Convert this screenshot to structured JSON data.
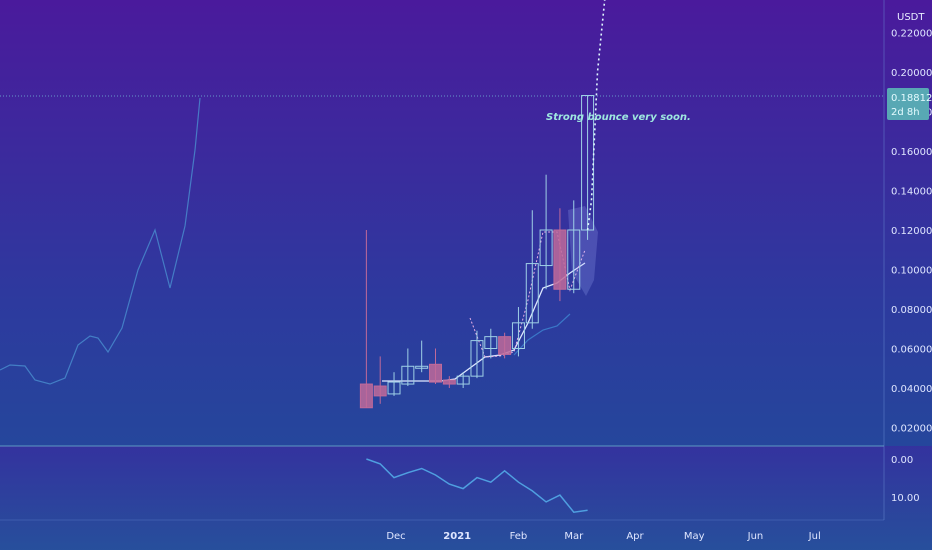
{
  "colors": {
    "bg_top": "#4a1a9c",
    "bg_mid": "#2d3a9e",
    "bg_bottom": "#1f4f9a",
    "candle_up": "#9fd0e6",
    "candle_down": "#c06a9a",
    "annotation": "#9ee8e0",
    "price_badge": "#58a8b4"
  },
  "chart_data": [
    {
      "type": "candlestick",
      "currency_label": "USDT",
      "y_ticks": [
        "0.22000",
        "0.20000",
        "0.18000",
        "0.16000",
        "0.14000",
        "0.12000",
        "0.10000",
        "0.08000",
        "0.06000",
        "0.04000",
        "0.02000"
      ],
      "ylim": [
        0.01,
        0.235
      ],
      "x_ticks": [
        "Dec",
        "2021",
        "Feb",
        "Mar",
        "Apr",
        "May",
        "Jun",
        "Jul"
      ],
      "last_price": "0.18812",
      "countdown": "2d 8h",
      "annotation": "Strong bounce very soon.",
      "candles": [
        {
          "date": "2020-11-16",
          "open": 0.042,
          "high": 0.12,
          "low": 0.03,
          "close": 0.03
        },
        {
          "date": "2020-11-23",
          "open": 0.041,
          "high": 0.056,
          "low": 0.032,
          "close": 0.036
        },
        {
          "date": "2020-11-30",
          "open": 0.037,
          "high": 0.048,
          "low": 0.036,
          "close": 0.043
        },
        {
          "date": "2020-12-07",
          "open": 0.042,
          "high": 0.06,
          "low": 0.041,
          "close": 0.051
        },
        {
          "date": "2020-12-14",
          "open": 0.05,
          "high": 0.064,
          "low": 0.048,
          "close": 0.051
        },
        {
          "date": "2020-12-21",
          "open": 0.052,
          "high": 0.06,
          "low": 0.042,
          "close": 0.043
        },
        {
          "date": "2020-12-28",
          "open": 0.044,
          "high": 0.046,
          "low": 0.04,
          "close": 0.042
        },
        {
          "date": "2021-01-04",
          "open": 0.042,
          "high": 0.048,
          "low": 0.04,
          "close": 0.046
        },
        {
          "date": "2021-01-11",
          "open": 0.046,
          "high": 0.069,
          "low": 0.045,
          "close": 0.064
        },
        {
          "date": "2021-01-18",
          "open": 0.06,
          "high": 0.07,
          "low": 0.055,
          "close": 0.066
        },
        {
          "date": "2021-01-25",
          "open": 0.066,
          "high": 0.068,
          "low": 0.055,
          "close": 0.057
        },
        {
          "date": "2021-02-01",
          "open": 0.06,
          "high": 0.081,
          "low": 0.056,
          "close": 0.073
        },
        {
          "date": "2021-02-08",
          "open": 0.073,
          "high": 0.13,
          "low": 0.07,
          "close": 0.103
        },
        {
          "date": "2021-02-15",
          "open": 0.102,
          "high": 0.148,
          "low": 0.09,
          "close": 0.12
        },
        {
          "date": "2021-02-22",
          "open": 0.12,
          "high": 0.131,
          "low": 0.084,
          "close": 0.09
        },
        {
          "date": "2021-03-01",
          "open": 0.09,
          "high": 0.135,
          "low": 0.088,
          "close": 0.12
        },
        {
          "date": "2021-03-08",
          "open": 0.12,
          "high": 0.188,
          "low": 0.115,
          "close": 0.1881
        }
      ],
      "projection_points": [
        {
          "date": "2021-03-08",
          "y": 0.12
        },
        {
          "date": "2021-03-10",
          "y": 0.135
        },
        {
          "date": "2021-03-13",
          "y": 0.2
        },
        {
          "date": "2021-03-17",
          "y": 0.24
        }
      ]
    },
    {
      "type": "line",
      "y_ticks": [
        "0.00",
        "10.00"
      ],
      "ylim": [
        -1.0,
        14.5
      ],
      "values": [
        {
          "date": "2020-11-16",
          "y": 0.0
        },
        {
          "date": "2020-11-23",
          "y": 1.3
        },
        {
          "date": "2020-11-30",
          "y": 4.9
        },
        {
          "date": "2020-12-07",
          "y": 3.6
        },
        {
          "date": "2020-12-14",
          "y": 2.5
        },
        {
          "date": "2020-12-21",
          "y": 4.2
        },
        {
          "date": "2020-12-28",
          "y": 6.6
        },
        {
          "date": "2021-01-04",
          "y": 7.8
        },
        {
          "date": "2021-01-11",
          "y": 4.9
        },
        {
          "date": "2021-01-18",
          "y": 6.1
        },
        {
          "date": "2021-01-25",
          "y": 3.1
        },
        {
          "date": "2021-02-01",
          "y": 6.1
        },
        {
          "date": "2021-02-08",
          "y": 8.4
        },
        {
          "date": "2021-02-15",
          "y": 11.3
        },
        {
          "date": "2021-02-22",
          "y": 9.5
        },
        {
          "date": "2021-03-01",
          "y": 14.0
        },
        {
          "date": "2021-03-08",
          "y": 13.5
        }
      ]
    }
  ]
}
